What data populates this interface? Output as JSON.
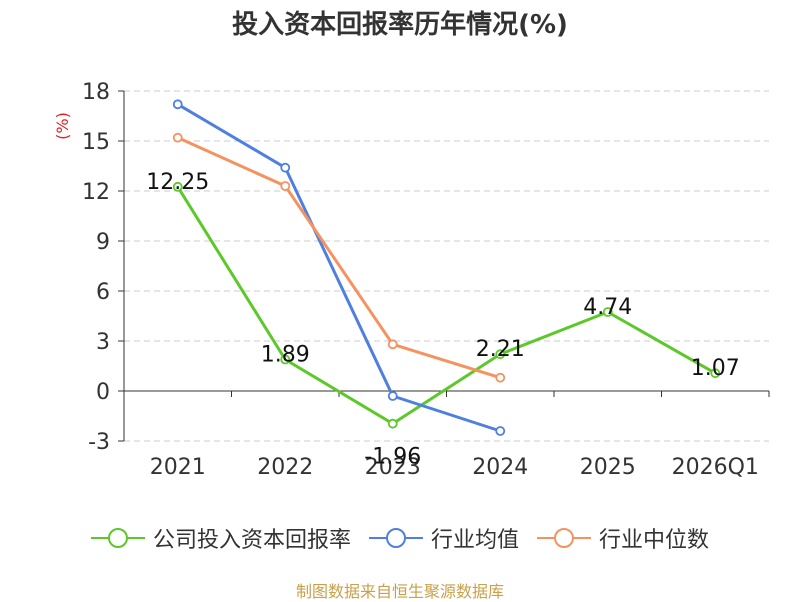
{
  "chart_data": {
    "type": "line",
    "title": "投入资本回报率历年情况(%)",
    "ylabel": "(%)",
    "categories": [
      "2021",
      "2022",
      "2023",
      "2024",
      "2025",
      "2026Q1"
    ],
    "ylim": [
      -3,
      18
    ],
    "yticks": [
      -3,
      0,
      3,
      6,
      9,
      12,
      15,
      18
    ],
    "grid": true,
    "legend_position": "bottom",
    "series": [
      {
        "name": "公司投入资本回报率",
        "color": "#5cc829",
        "values": [
          12.25,
          1.89,
          -1.96,
          2.21,
          4.74,
          1.07
        ],
        "labels": [
          "12.25",
          "1.89",
          "-1.96",
          "2.21",
          "4.74",
          "1.07"
        ]
      },
      {
        "name": "行业均值",
        "color": "#4f7fe0",
        "values": [
          17.2,
          13.4,
          -0.3,
          -2.4,
          null,
          null
        ]
      },
      {
        "name": "行业中位数",
        "color": "#f59360",
        "values": [
          15.2,
          12.3,
          2.8,
          0.8,
          null,
          null
        ]
      }
    ]
  },
  "source": "制图数据来自恒生聚源数据库"
}
